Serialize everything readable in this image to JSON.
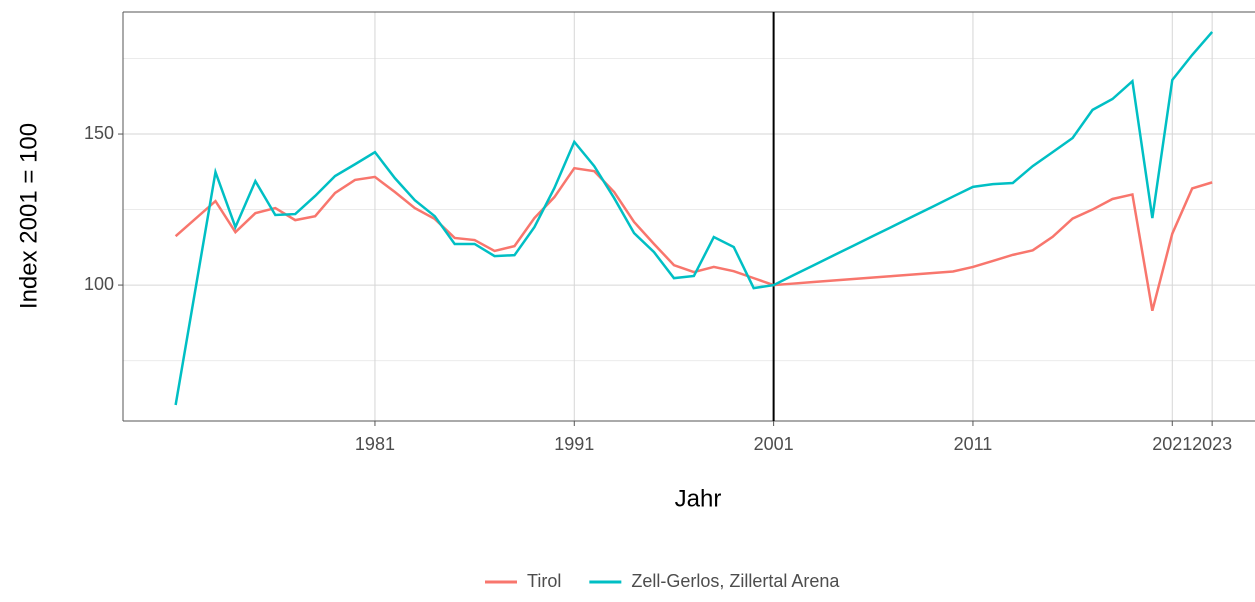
{
  "chart_data": {
    "type": "line",
    "x_label": "Jahr",
    "y_label": "Index 2001 = 100",
    "x": [
      1971,
      1973,
      1974,
      1975,
      1976,
      1977,
      1978,
      1979,
      1980,
      1981,
      1982,
      1983,
      1984,
      1985,
      1986,
      1987,
      1988,
      1989,
      1990,
      1991,
      1992,
      1993,
      1994,
      1995,
      1996,
      1997,
      1998,
      1999,
      2000,
      2001,
      2002,
      2003,
      2004,
      2005,
      2006,
      2007,
      2008,
      2009,
      2010,
      2011,
      2012,
      2013,
      2014,
      2015,
      2016,
      2017,
      2018,
      2019,
      2020,
      2021,
      2022,
      2023
    ],
    "series": [
      {
        "name": "Tirol",
        "color": "#f8766d",
        "values": [
          116.2,
          127.8,
          117.5,
          123.8,
          125.5,
          121.5,
          122.8,
          130.5,
          134.8,
          135.8,
          130.8,
          125.5,
          121.9,
          115.6,
          114.9,
          111.3,
          112.9,
          122.2,
          129.1,
          138.7,
          137.7,
          130.8,
          120.9,
          113.6,
          106.6,
          104.3,
          106,
          104.6,
          102.3,
          100,
          100.5,
          101,
          101.5,
          102,
          102.5,
          103,
          103.5,
          104,
          104.5,
          106,
          108,
          110,
          111.5,
          116,
          122,
          125,
          128.5,
          130,
          91.5,
          117,
          132,
          134
        ]
      },
      {
        "name": "Zell-Gerlos, Zillertal Arena",
        "color": "#00bfc4",
        "values": [
          60.3,
          137.4,
          119.2,
          134.4,
          123.2,
          123.5,
          129.5,
          136.1,
          140,
          144,
          135.4,
          128.1,
          122.8,
          113.6,
          113.6,
          109.6,
          109.9,
          119.2,
          132.1,
          147.4,
          139.4,
          128.8,
          117.2,
          110.9,
          102.3,
          103,
          115.9,
          112.6,
          99,
          100,
          103.3,
          106.5,
          109.8,
          113,
          116.3,
          119.5,
          122.8,
          126,
          129.3,
          132.5,
          133.4,
          133.8,
          139.4,
          144,
          148.7,
          158,
          161.6,
          167.5,
          122.2,
          167.9,
          176.2,
          183.8
        ]
      }
    ],
    "xlim": [
      1968.36,
      2025.15
    ],
    "xticks": [
      1981,
      1991,
      2001,
      2011,
      2021,
      2023
    ],
    "ylim": [
      55,
      190.4
    ],
    "yticks": [
      100,
      150
    ],
    "y_minor_ticks": [
      75,
      125,
      175
    ],
    "vline": 2001,
    "grid": true,
    "legend": "bottom"
  }
}
